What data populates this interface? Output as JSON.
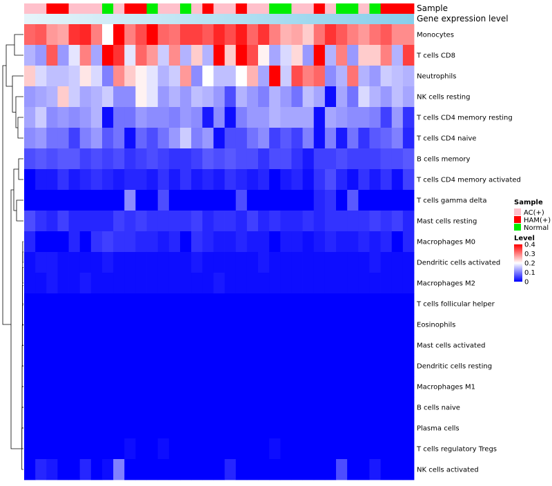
{
  "chart_data": {
    "type": "heatmap",
    "annotation_tracks": [
      "Sample",
      "Gene expression level"
    ],
    "sample_groups": [
      "AC(+)",
      "AC(+)",
      "HAM(+)",
      "HAM(+)",
      "AC(+)",
      "AC(+)",
      "AC(+)",
      "Normal",
      "AC(+)",
      "HAM(+)",
      "HAM(+)",
      "Normal",
      "AC(+)",
      "AC(+)",
      "Normal",
      "AC(+)",
      "HAM(+)",
      "AC(+)",
      "AC(+)",
      "HAM(+)",
      "AC(+)",
      "AC(+)",
      "Normal",
      "Normal",
      "AC(+)",
      "AC(+)",
      "HAM(+)",
      "AC(+)",
      "Normal",
      "Normal",
      "AC(+)",
      "Normal",
      "HAM(+)",
      "HAM(+)",
      "HAM(+)"
    ],
    "rows": [
      {
        "label": "Monocytes",
        "values": [
          0.32,
          0.33,
          0.28,
          0.27,
          0.36,
          0.37,
          0.3,
          0.2,
          0.4,
          0.3,
          0.34,
          0.4,
          0.32,
          0.31,
          0.35,
          0.35,
          0.33,
          0.37,
          0.34,
          0.38,
          0.32,
          0.36,
          0.3,
          0.26,
          0.27,
          0.24,
          0.31,
          0.36,
          0.33,
          0.3,
          0.28,
          0.31,
          0.33,
          0.29,
          0.29
        ]
      },
      {
        "label": "T cells CD8",
        "values": [
          0.14,
          0.12,
          0.33,
          0.12,
          0.18,
          0.3,
          0.13,
          0.4,
          0.36,
          0.18,
          0.32,
          0.28,
          0.16,
          0.29,
          0.14,
          0.24,
          0.14,
          0.4,
          0.24,
          0.4,
          0.34,
          0.21,
          0.13,
          0.17,
          0.23,
          0.12,
          0.4,
          0.14,
          0.3,
          0.12,
          0.24,
          0.24,
          0.3,
          0.14,
          0.35
        ]
      },
      {
        "label": "Neutrophils",
        "values": [
          0.24,
          0.17,
          0.15,
          0.15,
          0.16,
          0.22,
          0.17,
          0.1,
          0.29,
          0.24,
          0.21,
          0.18,
          0.14,
          0.16,
          0.28,
          0.11,
          0.2,
          0.15,
          0.15,
          0.2,
          0.26,
          0.13,
          0.4,
          0.16,
          0.34,
          0.3,
          0.32,
          0.11,
          0.14,
          0.31,
          0.14,
          0.12,
          0.16,
          0.15,
          0.14
        ]
      },
      {
        "label": "NK cells resting",
        "values": [
          0.12,
          0.13,
          0.14,
          0.24,
          0.16,
          0.13,
          0.14,
          0.16,
          0.11,
          0.11,
          0.21,
          0.18,
          0.12,
          0.14,
          0.12,
          0.15,
          0.14,
          0.12,
          0.06,
          0.14,
          0.12,
          0.1,
          0.14,
          0.12,
          0.09,
          0.15,
          0.13,
          0.01,
          0.13,
          0.09,
          0.17,
          0.14,
          0.12,
          0.15,
          0.13
        ]
      },
      {
        "label": "T cells CD4 memory resting",
        "values": [
          0.13,
          0.16,
          0.11,
          0.12,
          0.11,
          0.12,
          0.14,
          0.01,
          0.09,
          0.09,
          0.12,
          0.11,
          0.11,
          0.1,
          0.12,
          0.11,
          0.02,
          0.11,
          0.01,
          0.1,
          0.12,
          0.12,
          0.14,
          0.13,
          0.13,
          0.13,
          0.01,
          0.13,
          0.12,
          0.11,
          0.11,
          0.1,
          0.05,
          0.12,
          0.04
        ]
      },
      {
        "label": "T cells CD4 naive",
        "values": [
          0.11,
          0.12,
          0.09,
          0.09,
          0.05,
          0.1,
          0.12,
          0.07,
          0.09,
          0.01,
          0.08,
          0.06,
          0.09,
          0.12,
          0.16,
          0.1,
          0.12,
          0.01,
          0.06,
          0.06,
          0.09,
          0.11,
          0.05,
          0.07,
          0.05,
          0.1,
          0.01,
          0.1,
          0.02,
          0.09,
          0.04,
          0.07,
          0.08,
          0.1,
          0.03
        ]
      },
      {
        "label": "B cells memory",
        "values": [
          0.06,
          0.07,
          0.06,
          0.07,
          0.07,
          0.05,
          0.06,
          0.05,
          0.06,
          0.04,
          0.05,
          0.06,
          0.05,
          0.04,
          0.04,
          0.05,
          0.07,
          0.06,
          0.07,
          0.06,
          0.06,
          0.04,
          0.06,
          0.06,
          0.04,
          0.02,
          0.05,
          0.05,
          0.06,
          0.05,
          0.05,
          0.05,
          0.06,
          0.06,
          0.07
        ]
      },
      {
        "label": "T cells CD4 memory activated",
        "values": [
          0.0,
          0.02,
          0.02,
          0.04,
          0.02,
          0.03,
          0.04,
          0.03,
          0.02,
          0.03,
          0.03,
          0.02,
          0.04,
          0.02,
          0.04,
          0.02,
          0.03,
          0.02,
          0.04,
          0.03,
          0.02,
          0.03,
          0.0,
          0.02,
          0.03,
          0.01,
          0.04,
          0.06,
          0.03,
          0.01,
          0.04,
          0.02,
          0.04,
          0.01,
          0.05
        ]
      },
      {
        "label": "T cells gamma delta",
        "values": [
          0.0,
          0.0,
          0.0,
          0.0,
          0.0,
          0.0,
          0.0,
          0.0,
          0.0,
          0.11,
          0.0,
          0.0,
          0.06,
          0.0,
          0.0,
          0.0,
          0.0,
          0.0,
          0.0,
          0.06,
          0.0,
          0.0,
          0.0,
          0.0,
          0.0,
          0.0,
          0.03,
          0.04,
          0.0,
          0.07,
          0.0,
          0.0,
          0.0,
          0.0,
          0.0
        ]
      },
      {
        "label": "Mast cells resting",
        "values": [
          0.06,
          0.04,
          0.03,
          0.05,
          0.03,
          0.03,
          0.03,
          0.03,
          0.05,
          0.04,
          0.05,
          0.04,
          0.04,
          0.04,
          0.04,
          0.05,
          0.03,
          0.04,
          0.04,
          0.03,
          0.05,
          0.03,
          0.04,
          0.03,
          0.03,
          0.04,
          0.03,
          0.04,
          0.04,
          0.04,
          0.04,
          0.05,
          0.04,
          0.05,
          0.03
        ]
      },
      {
        "label": "Macrophages M0",
        "values": [
          0.03,
          0.0,
          0.0,
          0.0,
          0.03,
          0.0,
          0.04,
          0.05,
          0.04,
          0.04,
          0.03,
          0.03,
          0.02,
          0.03,
          0.0,
          0.04,
          0.03,
          0.02,
          0.02,
          0.03,
          0.02,
          0.02,
          0.0,
          0.02,
          0.02,
          0.01,
          0.02,
          0.03,
          0.02,
          0.02,
          0.03,
          0.02,
          0.03,
          0.0,
          0.03
        ]
      },
      {
        "label": "Dendritic cells activated",
        "values": [
          0.01,
          0.02,
          0.02,
          0.01,
          0.01,
          0.01,
          0.01,
          0.02,
          0.01,
          0.01,
          0.01,
          0.01,
          0.01,
          0.01,
          0.01,
          0.02,
          0.01,
          0.01,
          0.01,
          0.01,
          0.01,
          0.02,
          0.01,
          0.01,
          0.01,
          0.01,
          0.01,
          0.01,
          0.01,
          0.01,
          0.01,
          0.02,
          0.01,
          0.01,
          0.01
        ]
      },
      {
        "label": "Macrophages M2",
        "values": [
          0.01,
          0.01,
          0.02,
          0.01,
          0.01,
          0.02,
          0.01,
          0.01,
          0.01,
          0.01,
          0.01,
          0.01,
          0.01,
          0.01,
          0.01,
          0.01,
          0.01,
          0.02,
          0.01,
          0.01,
          0.01,
          0.01,
          0.01,
          0.01,
          0.01,
          0.01,
          0.01,
          0.01,
          0.01,
          0.01,
          0.01,
          0.01,
          0.01,
          0.01,
          0.01
        ]
      },
      {
        "label": "T cells follicular helper",
        "values": [
          0.0,
          0.0,
          0.0,
          0.0,
          0.0,
          0.0,
          0.0,
          0.0,
          0.0,
          0.0,
          0.0,
          0.0,
          0.0,
          0.0,
          0.0,
          0.0,
          0.0,
          0.0,
          0.0,
          0.0,
          0.0,
          0.0,
          0.0,
          0.0,
          0.0,
          0.0,
          0.0,
          0.0,
          0.0,
          0.0,
          0.0,
          0.0,
          0.0,
          0.0,
          0.0
        ]
      },
      {
        "label": "Eosinophils",
        "values": [
          0.0,
          0.0,
          0.0,
          0.0,
          0.0,
          0.0,
          0.0,
          0.0,
          0.0,
          0.0,
          0.0,
          0.0,
          0.0,
          0.0,
          0.0,
          0.0,
          0.0,
          0.0,
          0.0,
          0.0,
          0.0,
          0.0,
          0.0,
          0.0,
          0.0,
          0.0,
          0.0,
          0.0,
          0.0,
          0.0,
          0.0,
          0.0,
          0.0,
          0.0,
          0.0
        ]
      },
      {
        "label": "Mast cells activated",
        "values": [
          0.0,
          0.0,
          0.0,
          0.0,
          0.0,
          0.0,
          0.0,
          0.0,
          0.0,
          0.0,
          0.0,
          0.0,
          0.0,
          0.0,
          0.0,
          0.0,
          0.0,
          0.0,
          0.0,
          0.0,
          0.0,
          0.0,
          0.0,
          0.0,
          0.0,
          0.0,
          0.0,
          0.0,
          0.0,
          0.0,
          0.0,
          0.0,
          0.0,
          0.0,
          0.0
        ]
      },
      {
        "label": "Dendritic cells resting",
        "values": [
          0.0,
          0.0,
          0.0,
          0.0,
          0.0,
          0.0,
          0.0,
          0.0,
          0.0,
          0.0,
          0.0,
          0.0,
          0.0,
          0.0,
          0.0,
          0.0,
          0.0,
          0.0,
          0.0,
          0.0,
          0.0,
          0.0,
          0.0,
          0.0,
          0.0,
          0.0,
          0.0,
          0.0,
          0.0,
          0.0,
          0.0,
          0.0,
          0.0,
          0.0,
          0.0
        ]
      },
      {
        "label": "Macrophages M1",
        "values": [
          0.0,
          0.0,
          0.0,
          0.0,
          0.0,
          0.0,
          0.0,
          0.0,
          0.0,
          0.0,
          0.0,
          0.0,
          0.0,
          0.0,
          0.0,
          0.0,
          0.0,
          0.0,
          0.0,
          0.0,
          0.0,
          0.0,
          0.0,
          0.0,
          0.0,
          0.0,
          0.0,
          0.0,
          0.0,
          0.0,
          0.0,
          0.0,
          0.0,
          0.0,
          0.0
        ]
      },
      {
        "label": "B cells naive",
        "values": [
          0.0,
          0.0,
          0.0,
          0.0,
          0.0,
          0.0,
          0.0,
          0.0,
          0.0,
          0.0,
          0.0,
          0.0,
          0.0,
          0.0,
          0.0,
          0.0,
          0.0,
          0.0,
          0.0,
          0.0,
          0.0,
          0.0,
          0.0,
          0.0,
          0.0,
          0.0,
          0.0,
          0.0,
          0.0,
          0.0,
          0.0,
          0.0,
          0.0,
          0.0,
          0.0
        ]
      },
      {
        "label": "Plasma cells",
        "values": [
          0.0,
          0.0,
          0.0,
          0.0,
          0.0,
          0.0,
          0.0,
          0.0,
          0.0,
          0.0,
          0.0,
          0.0,
          0.0,
          0.0,
          0.0,
          0.0,
          0.0,
          0.0,
          0.0,
          0.0,
          0.0,
          0.0,
          0.0,
          0.0,
          0.0,
          0.0,
          0.0,
          0.0,
          0.0,
          0.0,
          0.0,
          0.0,
          0.0,
          0.0,
          0.0
        ]
      },
      {
        "label": "T cells regulatory  Tregs",
        "values": [
          0.0,
          0.0,
          0.0,
          0.0,
          0.0,
          0.0,
          0.0,
          0.0,
          0.0,
          0.01,
          0.0,
          0.0,
          0.01,
          0.0,
          0.0,
          0.0,
          0.0,
          0.0,
          0.0,
          0.0,
          0.0,
          0.0,
          0.01,
          0.0,
          0.0,
          0.0,
          0.0,
          0.0,
          0.0,
          0.0,
          0.0,
          0.0,
          0.0,
          0.0,
          0.0
        ]
      },
      {
        "label": "NK cells activated",
        "values": [
          0.0,
          0.03,
          0.02,
          0.0,
          0.0,
          0.03,
          0.0,
          0.01,
          0.1,
          0.0,
          0.0,
          0.0,
          0.0,
          0.0,
          0.0,
          0.0,
          0.0,
          0.0,
          0.03,
          0.0,
          0.0,
          0.0,
          0.0,
          0.0,
          0.0,
          0.0,
          0.0,
          0.0,
          0.06,
          0.0,
          0.0,
          0.02,
          0.0,
          0.0,
          0.0
        ]
      }
    ],
    "legend_sample": {
      "title": "Sample",
      "entries": [
        {
          "label": "AC(+)",
          "color": "#ffc0cb"
        },
        {
          "label": "HAM(+)",
          "color": "#ff0000"
        },
        {
          "label": "Normal",
          "color": "#00ee00"
        }
      ]
    },
    "legend_level": {
      "title": "Level",
      "ticks": [
        {
          "label": "0.4",
          "value": 0.4
        },
        {
          "label": "0.3",
          "value": 0.3
        },
        {
          "label": "0.2",
          "value": 0.2
        },
        {
          "label": "0.1",
          "value": 0.1
        },
        {
          "label": "0",
          "value": 0
        }
      ],
      "range": [
        0,
        0.4
      ]
    },
    "colors": {
      "low": "#0000ff",
      "mid": "#ffffff",
      "high": "#ff0000",
      "expression_track": "#87ceeb",
      "expression_track_light": "#e6f4fa"
    }
  }
}
